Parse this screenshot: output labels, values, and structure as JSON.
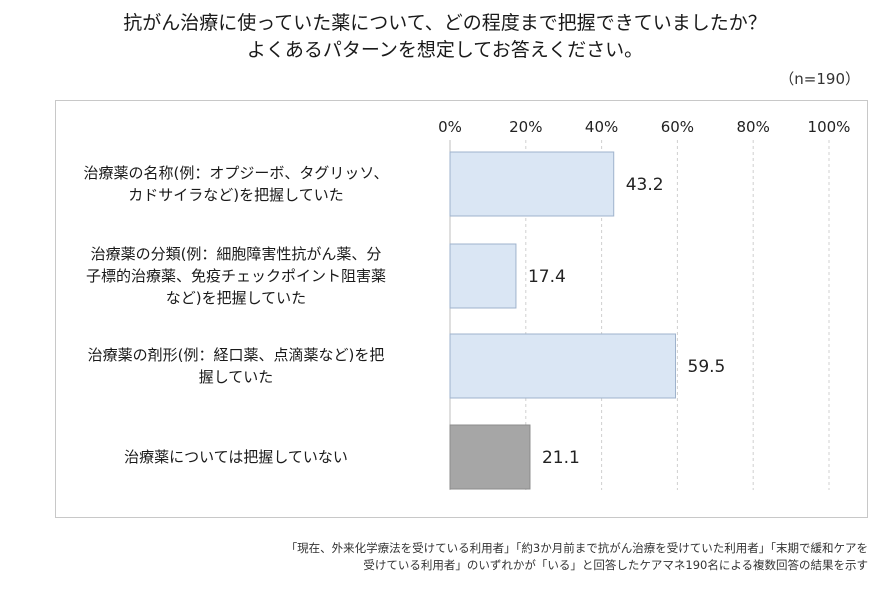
{
  "title_line1": "抗がん治療に使っていた薬について、どの程度まで把握できていましたか？",
  "title_line2": "よくあるパターンを想定してお答えください。",
  "sample_note": "（n=190）",
  "footnote_line1": "「現在、外来化学療法を受けている利用者」「約3か月前まで抗がん治療を受けていた利用者」「末期で緩和ケアを",
  "footnote_line2": "受けている利用者」のいずれかが「いる」と回答したケアマネ190名による複数回答の結果を示す",
  "categories_display": {
    "c0": "治療薬の名称(例：オプジーボ、タグリッソ、<br>カドサイラなど)を把握していた",
    "c1": "治療薬の分類(例：細胞障害性抗がん薬、分<br>子標的治療薬、免疫チェックポイント阻害薬<br>など)を把握していた",
    "c2": "治療薬の剤形(例：経口薬、点滴薬など)を把<br>握していた",
    "c3": "治療薬については把握していない"
  },
  "chart_data": {
    "type": "bar",
    "orientation": "horizontal",
    "categories": [
      "治療薬の名称(例：オプジーボ、タグリッソ、カドサイラなど)を把握していた",
      "治療薬の分類(例：細胞障害性抗がん薬、分子標的治療薬、免疫チェックポイント阻害薬など)を把握していた",
      "治療薬の剤形(例：経口薬、点滴薬など)を把握していた",
      "治療薬については把握していない"
    ],
    "values": [
      43.2,
      17.4,
      59.5,
      21.1
    ],
    "value_labels": [
      "43.2",
      "17.4",
      "59.5",
      "21.1"
    ],
    "xlim": [
      0,
      100
    ],
    "xticks": [
      "0%",
      "20%",
      "40%",
      "60%",
      "80%",
      "100%"
    ],
    "grid": true,
    "colors": [
      "#dae6f4",
      "#dae6f4",
      "#dae6f4",
      "#a6a6a6"
    ],
    "bar_border": "#9fb3cc"
  }
}
